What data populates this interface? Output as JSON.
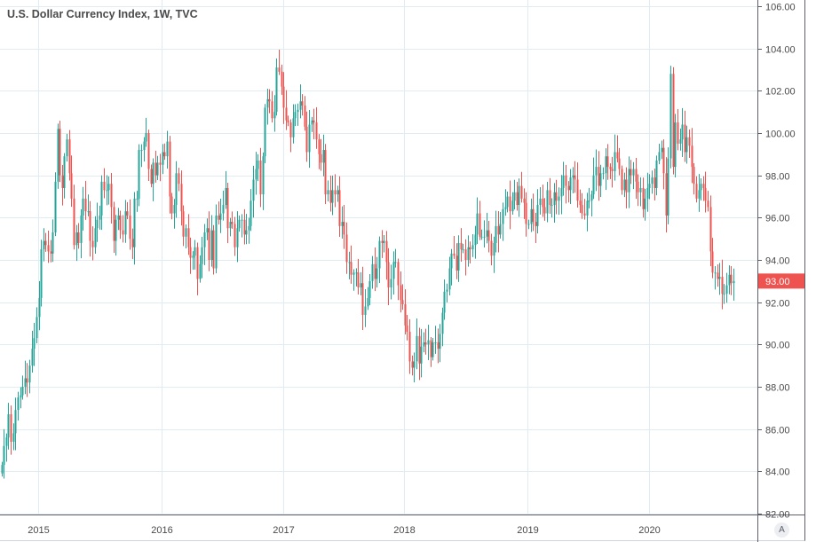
{
  "chart_data": {
    "type": "candlestick",
    "title": "U.S. Dollar Currency Index, 1W, TVC",
    "interval": "1W",
    "xlabel": "",
    "ylabel": "",
    "ylim": [
      82,
      106
    ],
    "y_ticks": [
      "82.00",
      "84.00",
      "86.00",
      "88.00",
      "90.00",
      "92.00",
      "94.00",
      "96.00",
      "98.00",
      "100.00",
      "102.00",
      "104.00",
      "106.00"
    ],
    "x_ticks": [
      "2015",
      "2016",
      "2017",
      "2018",
      "2019",
      "2020"
    ],
    "x_tick_weeks": [
      15,
      68,
      120,
      172,
      225,
      277
    ],
    "grid": true,
    "last_price": "93.00",
    "colors": {
      "up": "#26a69a",
      "down": "#ef5350",
      "grid": "#e1ecf2",
      "axis": "#5d606b",
      "text": "#4a4a4a"
    },
    "weekly_closes": [
      84.3,
      85.2,
      85.6,
      86.7,
      85.4,
      85.8,
      86.9,
      87.5,
      87.6,
      88.0,
      88.4,
      88.2,
      89.0,
      89.8,
      90.3,
      91.3,
      92.2,
      94.5,
      94.9,
      94.7,
      94.4,
      94.3,
      95.3,
      97.7,
      100.2,
      98.0,
      97.4,
      98.9,
      99.7,
      98.1,
      96.9,
      94.7,
      95.3,
      94.8,
      96.1,
      96.9,
      96.3,
      96.3,
      94.9,
      94.6,
      95.5,
      95.9,
      96.1,
      97.7,
      97.3,
      97.3,
      97.6,
      96.5,
      94.9,
      95.9,
      96.1,
      95.4,
      95.2,
      96.3,
      96.1,
      95.0,
      94.6,
      96.9,
      96.9,
      99.2,
      99.2,
      99.6,
      100.0,
      98.3,
      97.6,
      98.6,
      98.0,
      98.6,
      98.5,
      99.1,
      98.9,
      99.6,
      97.0,
      96.2,
      96.6,
      98.1,
      97.6,
      96.3,
      95.1,
      95.5,
      94.6,
      94.1,
      94.2,
      94.6,
      93.1,
      93.8,
      94.6,
      95.3,
      95.5,
      94.0,
      95.4,
      93.6,
      96.1,
      95.9,
      96.2,
      96.6,
      97.4,
      95.5,
      95.8,
      95.7,
      94.6,
      95.5,
      95.9,
      95.9,
      95.2,
      95.4,
      95.6,
      96.8,
      97.8,
      98.3,
      98.7,
      97.1,
      98.9,
      101.2,
      101.6,
      101.5,
      100.7,
      101.0,
      103.1,
      102.9,
      102.2,
      101.2,
      100.6,
      100.5,
      99.8,
      100.7,
      101.0,
      101.1,
      101.5,
      101.3,
      100.3,
      99.1,
      100.4,
      100.6,
      100.5,
      99.7,
      99.0,
      98.6,
      99.2,
      97.1,
      97.3,
      96.7,
      97.3,
      97.1,
      97.3,
      95.6,
      95.8,
      95.2,
      93.9,
      93.9,
      93.3,
      93.4,
      93.4,
      92.7,
      92.9,
      91.4,
      91.8,
      92.2,
      93.0,
      93.8,
      93.1,
      93.6,
      94.9,
      94.8,
      94.9,
      93.9,
      92.7,
      93.1,
      93.9,
      93.9,
      92.8,
      92.1,
      91.9,
      90.9,
      90.6,
      89.2,
      88.9,
      89.2,
      90.4,
      89.1,
      89.9,
      90.1,
      90.0,
      90.2,
      89.4,
      90.1,
      90.1,
      89.8,
      90.5,
      91.5,
      92.5,
      92.6,
      93.6,
      94.3,
      94.2,
      93.5,
      94.8,
      94.5,
      94.5,
      94.0,
      94.6,
      94.5,
      94.7,
      95.2,
      96.2,
      95.1,
      95.1,
      95.1,
      95.4,
      94.9,
      94.2,
      94.8,
      95.6,
      95.2,
      95.7,
      96.4,
      96.5,
      97.0,
      96.3,
      96.8,
      97.2,
      96.6,
      97.5,
      96.9,
      96.7,
      95.7,
      95.7,
      96.4,
      95.8,
      95.6,
      96.6,
      96.9,
      96.5,
      96.2,
      97.3,
      96.6,
      96.6,
      97.2,
      96.8,
      97.0,
      97.4,
      98.0,
      97.5,
      97.3,
      97.9,
      98.0,
      97.8,
      96.8,
      96.6,
      96.2,
      96.1,
      96.8,
      96.8,
      97.1,
      98.0,
      98.4,
      97.5,
      98.1,
      98.1,
      98.9,
      98.4,
      98.3,
      98.2,
      99.1,
      98.8,
      98.3,
      97.3,
      97.8,
      97.2,
      98.3,
      98.0,
      98.3,
      97.7,
      97.2,
      97.4,
      96.4,
      96.9,
      97.4,
      97.6,
      97.9,
      97.4,
      98.7,
      99.1,
      99.3,
      98.1,
      96.1,
      98.8,
      102.8,
      98.4,
      100.5,
      99.5,
      99.7,
      100.4,
      99.1,
      99.8,
      99.4,
      98.4,
      97.6,
      96.9,
      97.3,
      97.6,
      97.4,
      96.8,
      96.5,
      94.4,
      93.4,
      93.4,
      93.1,
      93.2,
      92.4,
      92.4,
      92.8,
      93.3,
      92.9,
      93.0
    ],
    "first_open": 83.9
  },
  "axis_button_label": "A"
}
